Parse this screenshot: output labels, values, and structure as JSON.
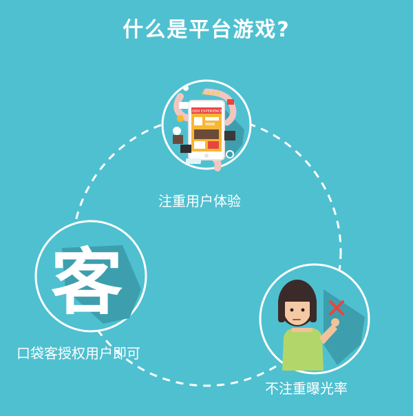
{
  "colors": {
    "background": "#4fc0d0",
    "line": "#ffffff",
    "shadow": "#3d9fad",
    "accent_red": "#e7463f"
  },
  "title": "什么是平台游戏?",
  "nodes": [
    {
      "label": "注重用户体验",
      "icon": "user-experience-illustration-icon",
      "phone_text": "USER EXPERIENCE"
    },
    {
      "label": "口袋客授权用户即可",
      "icon": "ke-character-icon",
      "glyph": "客"
    },
    {
      "label": "不注重曝光率",
      "icon": "unhappy-girl-icon"
    }
  ]
}
